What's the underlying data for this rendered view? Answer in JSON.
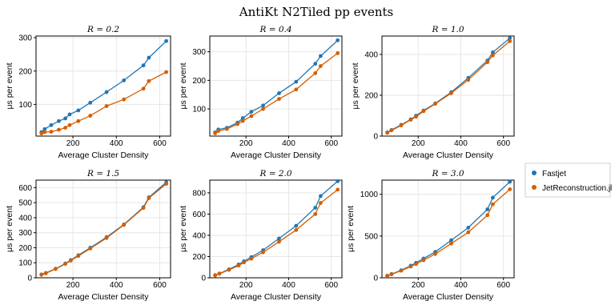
{
  "title": "AntiKt N2Tiled pp events",
  "colors": {
    "fastjet": "#1f77b4",
    "julia": "#d55e00",
    "grid": "#e6e6e6"
  },
  "legend": [
    {
      "label": "Fastjet",
      "color": "#1f77b4"
    },
    {
      "label": "JetReconstruction.jl",
      "color": "#d55e00"
    }
  ],
  "chart_data": [
    {
      "type": "line",
      "title": "R = 0.2",
      "xlabel": "Average Cluster Density",
      "ylabel": "μs per event",
      "xlim": [
        30,
        650
      ],
      "ylim": [
        5,
        305
      ],
      "xticks": [
        200,
        400,
        600
      ],
      "yticks": [
        100,
        200,
        300
      ],
      "x": [
        55,
        70,
        100,
        135,
        165,
        185,
        225,
        280,
        355,
        435,
        525,
        550,
        630
      ],
      "series": [
        {
          "name": "Fastjet",
          "values": [
            17,
            26,
            38,
            50,
            58,
            70,
            82,
            105,
            137,
            172,
            217,
            240,
            290
          ]
        },
        {
          "name": "JetReconstruction.jl",
          "values": [
            13,
            17,
            18,
            24,
            30,
            38,
            50,
            66,
            95,
            115,
            147,
            170,
            197
          ]
        }
      ]
    },
    {
      "type": "line",
      "title": "R = 0.4",
      "xlabel": "Average Cluster Density",
      "ylabel": "μs per event",
      "xlim": [
        30,
        650
      ],
      "ylim": [
        5,
        355
      ],
      "xticks": [
        200,
        400,
        600
      ],
      "yticks": [
        100,
        200,
        300
      ],
      "x": [
        55,
        70,
        110,
        160,
        185,
        225,
        280,
        355,
        435,
        525,
        550,
        630
      ],
      "series": [
        {
          "name": "Fastjet",
          "values": [
            18,
            28,
            34,
            52,
            68,
            90,
            112,
            155,
            195,
            258,
            285,
            340
          ]
        },
        {
          "name": "JetReconstruction.jl",
          "values": [
            15,
            23,
            30,
            47,
            58,
            75,
            100,
            135,
            168,
            225,
            250,
            295
          ]
        }
      ]
    },
    {
      "type": "line",
      "title": "R = 1.0",
      "xlabel": "Average Cluster Density",
      "ylabel": "μs per event",
      "xlim": [
        30,
        650
      ],
      "ylim": [
        0,
        490
      ],
      "xticks": [
        200,
        400,
        600
      ],
      "yticks": [
        0,
        200,
        400
      ],
      "x": [
        55,
        75,
        120,
        165,
        190,
        225,
        280,
        355,
        435,
        525,
        550,
        630
      ],
      "series": [
        {
          "name": "Fastjet",
          "values": [
            18,
            30,
            55,
            82,
            100,
            125,
            160,
            215,
            285,
            370,
            410,
            480
          ]
        },
        {
          "name": "JetReconstruction.jl",
          "values": [
            16,
            28,
            52,
            80,
            95,
            122,
            158,
            210,
            275,
            362,
            395,
            465
          ]
        }
      ]
    },
    {
      "type": "line",
      "title": "R = 1.5",
      "xlabel": "Average Cluster Density",
      "ylabel": "μs per event",
      "xlim": [
        30,
        650
      ],
      "ylim": [
        0,
        650
      ],
      "xticks": [
        200,
        400,
        600
      ],
      "yticks": [
        0,
        100,
        200,
        300,
        400,
        500,
        600
      ],
      "x": [
        55,
        75,
        120,
        165,
        190,
        225,
        280,
        355,
        435,
        525,
        550,
        630
      ],
      "series": [
        {
          "name": "Fastjet",
          "values": [
            22,
            32,
            60,
            95,
            118,
            150,
            200,
            270,
            355,
            470,
            535,
            635
          ]
        },
        {
          "name": "JetReconstruction.jl",
          "values": [
            20,
            30,
            58,
            92,
            115,
            145,
            195,
            265,
            352,
            465,
            530,
            625
          ]
        }
      ]
    },
    {
      "type": "line",
      "title": "R = 2.0",
      "xlabel": "Average Cluster Density",
      "ylabel": "μs per event",
      "xlim": [
        30,
        650
      ],
      "ylim": [
        0,
        920
      ],
      "xticks": [
        200,
        400,
        600
      ],
      "yticks": [
        0,
        200,
        400,
        600,
        800
      ],
      "x": [
        55,
        75,
        120,
        165,
        190,
        225,
        280,
        355,
        435,
        525,
        550,
        630
      ],
      "series": [
        {
          "name": "Fastjet",
          "values": [
            25,
            40,
            80,
            125,
            155,
            195,
            260,
            370,
            490,
            660,
            770,
            910
          ]
        },
        {
          "name": "JetReconstruction.jl",
          "values": [
            23,
            38,
            75,
            115,
            145,
            180,
            240,
            340,
            450,
            600,
            705,
            830
          ]
        }
      ]
    },
    {
      "type": "line",
      "title": "R = 3.0",
      "xlabel": "Average Cluster Density",
      "ylabel": "μs per event",
      "xlim": [
        30,
        650
      ],
      "ylim": [
        0,
        1170
      ],
      "xticks": [
        200,
        400,
        600
      ],
      "yticks": [
        0,
        500,
        1000
      ],
      "x": [
        55,
        75,
        120,
        165,
        190,
        225,
        280,
        355,
        435,
        525,
        550,
        630
      ],
      "series": [
        {
          "name": "Fastjet",
          "values": [
            25,
            45,
            90,
            145,
            180,
            230,
            310,
            450,
            600,
            820,
            960,
            1150
          ]
        },
        {
          "name": "JetReconstruction.jl",
          "values": [
            22,
            42,
            85,
            135,
            165,
            210,
            285,
            410,
            545,
            750,
            880,
            1060
          ]
        }
      ]
    }
  ]
}
